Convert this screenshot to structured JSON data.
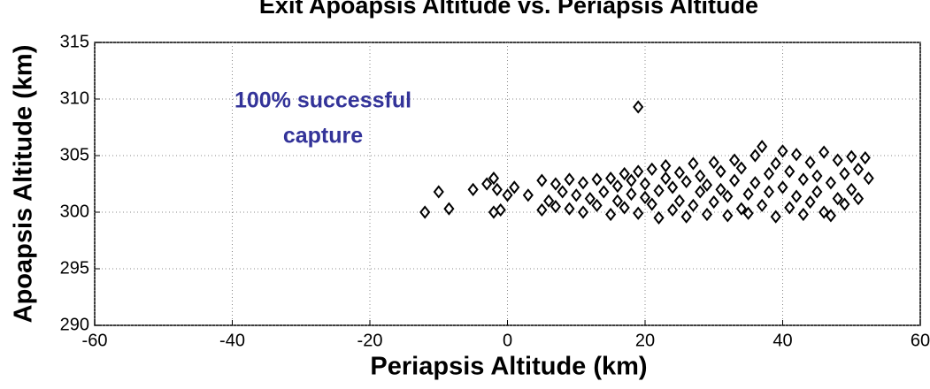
{
  "chart_data": {
    "type": "scatter",
    "title": "Exit Apoapsis Altitude vs. Periapsis Altitude",
    "xlabel": "Periapsis Altitude (km)",
    "ylabel": "Apoapsis Altitude (km)",
    "annotation": [
      "100% successful",
      "capture"
    ],
    "annotation_color": "#333399",
    "color": "#000000",
    "marker": "diamond-open",
    "grid": true,
    "xlim": [
      -60,
      60
    ],
    "xticks": [
      -60,
      -40,
      -20,
      0,
      20,
      40,
      60
    ],
    "ylim": [
      290,
      315
    ],
    "yticks": [
      290,
      295,
      300,
      305,
      310,
      315
    ],
    "x": [
      -12,
      -10,
      -8.5,
      -5,
      -3,
      -2,
      -1.5,
      -1,
      -2,
      19,
      0,
      1,
      3,
      5,
      5,
      6,
      7,
      7,
      8,
      9,
      9,
      10,
      11,
      11,
      12,
      13,
      13,
      14,
      15,
      15,
      16,
      16,
      17,
      17,
      18,
      18,
      19,
      19,
      20,
      20,
      21,
      21,
      22,
      22,
      23,
      23,
      24,
      24,
      25,
      25,
      26,
      26,
      27,
      27,
      28,
      28,
      29,
      29,
      30,
      30,
      31,
      31,
      32,
      32,
      33,
      33,
      34,
      34,
      35,
      35,
      36,
      36,
      37,
      37,
      38,
      38,
      39,
      39,
      40,
      40,
      41,
      41,
      42,
      42,
      43,
      43,
      44,
      44,
      45,
      45,
      46,
      46,
      47,
      47,
      48,
      48,
      49,
      49,
      50,
      50,
      51,
      52,
      52.5,
      51
    ],
    "y": [
      300,
      301.8,
      300.3,
      302,
      302.5,
      303,
      302,
      300.2,
      300,
      309.3,
      301.5,
      302.2,
      301.5,
      300.2,
      302.8,
      301,
      302.5,
      300.5,
      301.8,
      302.9,
      300.3,
      301.5,
      302.6,
      300,
      301.2,
      302.9,
      300.6,
      301.8,
      303,
      299.8,
      301,
      302.3,
      303.4,
      300.4,
      301.6,
      302.8,
      303.6,
      299.9,
      301.3,
      302.5,
      303.8,
      300.7,
      301.9,
      299.5,
      303,
      304.1,
      300.2,
      302.2,
      303.5,
      301,
      299.6,
      302.7,
      304.3,
      300.6,
      301.8,
      303.2,
      299.8,
      302.4,
      304.4,
      300.9,
      302,
      303.6,
      299.7,
      301.4,
      304.6,
      302.8,
      300.3,
      303.9,
      301.6,
      299.9,
      305,
      302.6,
      305.8,
      300.6,
      303.4,
      301.8,
      299.6,
      304.3,
      302.2,
      305.4,
      300.4,
      303.6,
      301.4,
      305.1,
      299.8,
      302.9,
      304.4,
      300.9,
      303.2,
      301.8,
      305.3,
      300,
      299.7,
      302.6,
      304.6,
      301.2,
      303.4,
      300.7,
      304.9,
      302,
      301.2,
      304.8,
      303,
      303.8
    ]
  }
}
